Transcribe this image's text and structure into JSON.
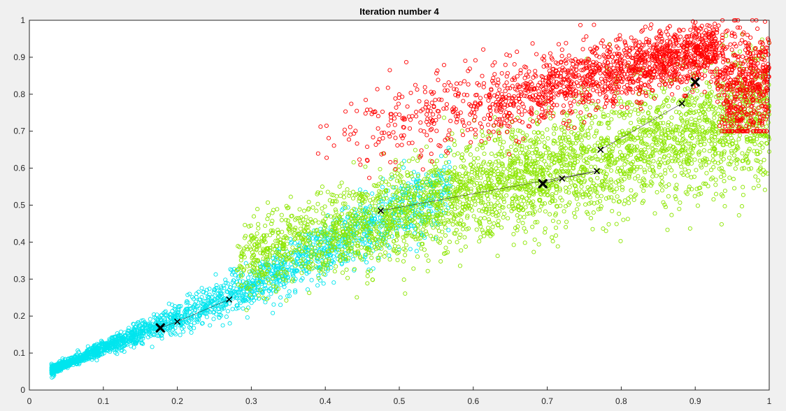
{
  "figure": {
    "background": "#f0f0f0"
  },
  "chart_data": {
    "type": "scatter",
    "title": "Iteration number 4",
    "xlabel": "",
    "ylabel": "",
    "xlim": [
      0,
      1
    ],
    "ylim": [
      0,
      1
    ],
    "xticks": [
      "0",
      "0.1",
      "0.2",
      "0.3",
      "0.4",
      "0.5",
      "0.6",
      "0.7",
      "0.8",
      "0.9",
      "1"
    ],
    "yticks": [
      "0",
      "0.1",
      "0.2",
      "0.3",
      "0.4",
      "0.5",
      "0.6",
      "0.7",
      "0.8",
      "0.9",
      "1"
    ],
    "grid": false,
    "legend": "none",
    "marker": "open circle",
    "clusters": [
      {
        "color": "#00e5ee",
        "description": "cyan cluster, dense band along the low diagonal",
        "x_range": [
          0.03,
          0.57
        ],
        "approx_points": 2200,
        "centroid_path": [
          [
            0.27,
            0.245
          ],
          [
            0.2,
            0.185
          ],
          [
            0.177,
            0.168
          ]
        ],
        "final_centroid": [
          0.177,
          0.168
        ]
      },
      {
        "color": "#8ce600",
        "description": "green cluster, wide band through the middle",
        "x_range": [
          0.28,
          1.0
        ],
        "approx_points": 3400,
        "centroid_path": [
          [
            0.475,
            0.485
          ],
          [
            0.767,
            0.592
          ],
          [
            0.72,
            0.572
          ],
          [
            0.694,
            0.558
          ]
        ],
        "final_centroid": [
          0.694,
          0.558
        ]
      },
      {
        "color": "#ff0000",
        "description": "red cluster, upper band concentrated near the top-right corner",
        "x_range": [
          0.38,
          1.0
        ],
        "approx_points": 2100,
        "centroid_path": [
          [
            0.772,
            0.65
          ],
          [
            0.882,
            0.775
          ],
          [
            0.9,
            0.833
          ]
        ],
        "final_centroid": [
          0.9,
          0.833
        ]
      }
    ],
    "centroid_marker": "black x"
  }
}
